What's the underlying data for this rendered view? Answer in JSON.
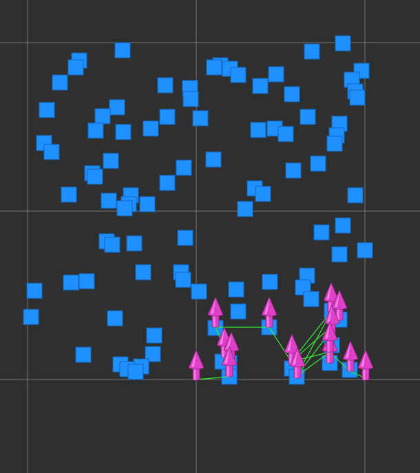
{
  "viewport": {
    "background_color": "#2f2f2f",
    "grid_color": "#8a8a8a",
    "square_color": "#1e90ff",
    "square_edge_color": "#1466c0",
    "agent_color": "#e040c8",
    "agent_edge_color": "#8a1f7c",
    "link_color": "#33ee33",
    "selected_agents_count": 15,
    "blue_squares_count": 116
  }
}
